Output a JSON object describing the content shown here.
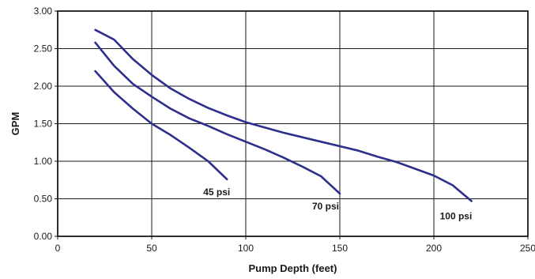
{
  "chart_data": {
    "type": "line",
    "xlabel": "Pump Depth (feet)",
    "ylabel": "GPM",
    "xlim": [
      0,
      250
    ],
    "ylim": [
      0,
      3
    ],
    "x_ticks": [
      "0",
      "50",
      "100",
      "150",
      "200",
      "250"
    ],
    "y_ticks": [
      "0.00",
      "0.50",
      "1.00",
      "1.50",
      "2.00",
      "2.50",
      "3.00"
    ],
    "grid": true,
    "colors": {
      "series": "#2e2f8c",
      "axis": "#1a1a1a",
      "grid": "#1a1a1a"
    },
    "series": [
      {
        "name": "45 psi",
        "x": [
          20,
          30,
          40,
          50,
          60,
          70,
          80,
          90
        ],
        "y": [
          2.2,
          1.92,
          1.7,
          1.5,
          1.35,
          1.18,
          1.0,
          0.76
        ]
      },
      {
        "name": "70 psi",
        "x": [
          20,
          30,
          40,
          50,
          60,
          70,
          80,
          90,
          100,
          110,
          120,
          130,
          140,
          150
        ],
        "y": [
          2.58,
          2.27,
          2.03,
          1.86,
          1.7,
          1.57,
          1.47,
          1.36,
          1.26,
          1.16,
          1.05,
          0.93,
          0.8,
          0.57
        ]
      },
      {
        "name": "100 psi",
        "x": [
          20,
          30,
          40,
          50,
          60,
          70,
          80,
          90,
          100,
          110,
          120,
          130,
          140,
          150,
          160,
          170,
          180,
          190,
          200,
          210,
          220
        ],
        "y": [
          2.75,
          2.62,
          2.36,
          2.15,
          1.97,
          1.83,
          1.71,
          1.61,
          1.52,
          1.45,
          1.38,
          1.32,
          1.26,
          1.2,
          1.14,
          1.06,
          0.99,
          0.9,
          0.81,
          0.68,
          0.47
        ]
      }
    ]
  }
}
